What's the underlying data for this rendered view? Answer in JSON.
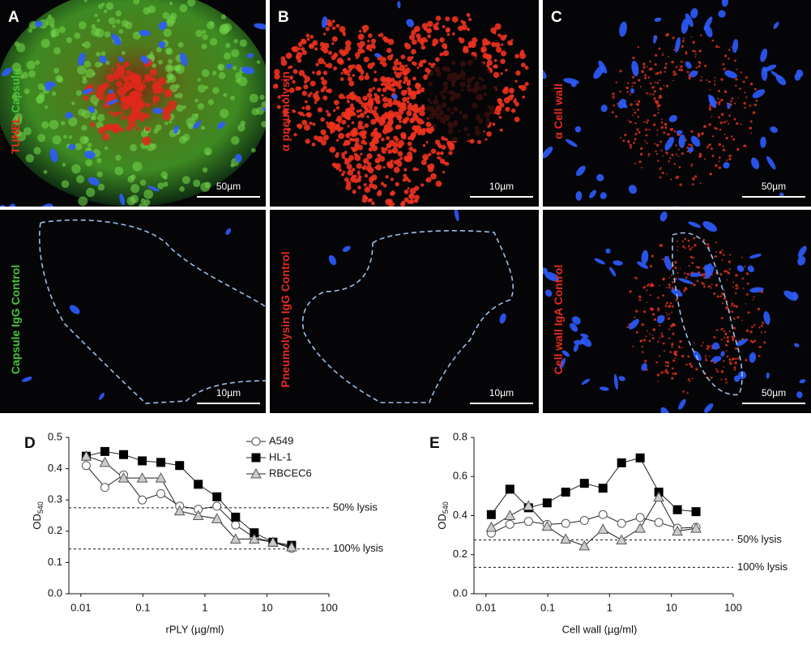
{
  "panels": [
    {
      "letter": "A",
      "labels": [
        {
          "text": "TUNEL",
          "color": "#e82a1e"
        },
        {
          "text": "Capsule",
          "color": "#49c43a"
        }
      ],
      "scale": "50µm"
    },
    {
      "letter": "B",
      "labels": [
        {
          "text": "α pneumolysin",
          "color": "#e82a1e"
        }
      ],
      "scale": "10µm"
    },
    {
      "letter": "C",
      "labels": [
        {
          "text": "α Cell wall",
          "color": "#e82a1e"
        }
      ],
      "scale": "50µm"
    },
    {
      "labels": [
        {
          "text": "Capsule IgG Control",
          "color": "#49c43a"
        }
      ],
      "scale": "10µm"
    },
    {
      "labels": [
        {
          "text": "Pneumolysin IgG Control",
          "color": "#e82a1e"
        }
      ],
      "scale": "10µm"
    },
    {
      "labels": [
        {
          "text": "Cell wall IgA Control",
          "color": "#e82a1e"
        }
      ],
      "scale": "50µm"
    }
  ],
  "chart_data": [
    {
      "type": "line",
      "letter": "D",
      "x_label": "rPLY (µg/ml)",
      "y_label": "OD",
      "y_label_subscript": "540",
      "log_x": true,
      "x": [
        0.0122,
        0.0244,
        0.0488,
        0.0977,
        0.195,
        0.391,
        0.781,
        1.5625,
        3.125,
        6.25,
        12.5,
        25
      ],
      "series": [
        {
          "name": "A549",
          "marker": "circle",
          "color": "#ffffff",
          "values": [
            0.41,
            0.34,
            0.38,
            0.3,
            0.32,
            0.28,
            0.27,
            0.28,
            0.22,
            0.18,
            0.165,
            0.145
          ]
        },
        {
          "name": "HL-1",
          "marker": "square",
          "color": "#000000",
          "values": [
            0.44,
            0.455,
            0.445,
            0.425,
            0.42,
            0.41,
            0.35,
            0.31,
            0.245,
            0.195,
            0.165,
            0.155
          ]
        },
        {
          "name": "RBCEC6",
          "marker": "triangle",
          "color": "#cccccc",
          "values": [
            0.44,
            0.42,
            0.37,
            0.37,
            0.37,
            0.265,
            0.25,
            0.24,
            0.175,
            0.175,
            0.165,
            0.15
          ]
        }
      ],
      "reference_lines": [
        {
          "value": 0.275,
          "label": "50% lysis"
        },
        {
          "value": 0.143,
          "label": "100% lysis"
        }
      ],
      "xlim": [
        0.0064,
        100
      ],
      "xticks": [
        0.01,
        0.1,
        1,
        10,
        100
      ],
      "ylim": [
        0,
        0.5
      ],
      "yticks": [
        {
          "value": 0,
          "label": "0.0"
        },
        0.1,
        0.2,
        0.3,
        0.4,
        0.5
      ],
      "legend": "top-right"
    },
    {
      "type": "line",
      "letter": "E",
      "x_label": "Cell wall (µg/ml)",
      "y_label": "OD",
      "y_label_subscript": "540",
      "log_x": true,
      "x": [
        0.0122,
        0.0244,
        0.0488,
        0.0977,
        0.195,
        0.391,
        0.781,
        1.5625,
        3.125,
        6.25,
        12.5,
        25
      ],
      "series": [
        {
          "name": "A549",
          "marker": "circle",
          "color": "#ffffff",
          "values": [
            0.31,
            0.355,
            0.37,
            0.355,
            0.36,
            0.375,
            0.405,
            0.36,
            0.39,
            0.365,
            0.335,
            0.34
          ]
        },
        {
          "name": "HL-1",
          "marker": "square",
          "color": "#000000",
          "values": [
            0.405,
            0.535,
            0.44,
            0.465,
            0.52,
            0.565,
            0.54,
            0.67,
            0.695,
            0.52,
            0.43,
            0.42
          ]
        },
        {
          "name": "RBCEC6",
          "marker": "triangle",
          "color": "#cccccc",
          "values": [
            0.34,
            0.4,
            0.45,
            0.345,
            0.28,
            0.245,
            0.33,
            0.275,
            0.335,
            0.495,
            0.32,
            0.335
          ]
        }
      ],
      "reference_lines": [
        {
          "value": 0.275,
          "label": "50% lysis"
        },
        {
          "value": 0.135,
          "label": "100% lysis"
        }
      ],
      "xlim": [
        0.0064,
        100
      ],
      "xticks": [
        0.01,
        0.1,
        1,
        10,
        100
      ],
      "ylim": [
        0,
        0.8
      ],
      "yticks": [
        {
          "value": 0,
          "label": "0.0"
        },
        0.2,
        0.4,
        0.6,
        0.8
      ]
    }
  ]
}
